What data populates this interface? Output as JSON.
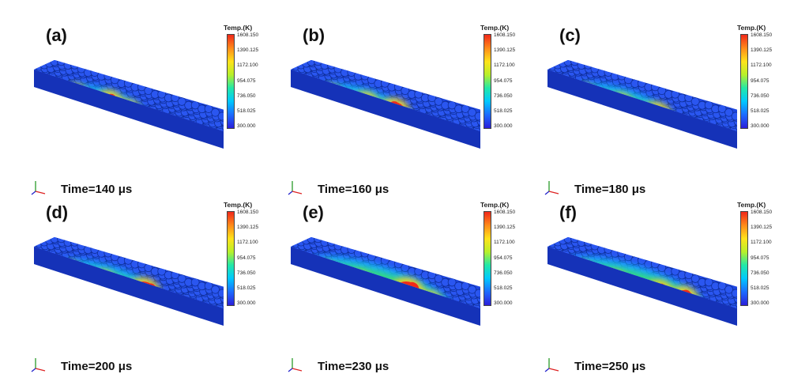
{
  "colors": {
    "scale": [
      "#2b1fd9",
      "#1c6bff",
      "#00c8ff",
      "#22e8a8",
      "#b8f02a",
      "#ffe21a",
      "#ff8a1a",
      "#f0281a"
    ],
    "block_top": "#1e46e0",
    "block_front": "#1532b8",
    "block_side": "#0e2490",
    "hot": "#f22a18",
    "warm": "#ffd21a",
    "mid": "#39e06a",
    "cool": "#18c0ff"
  },
  "icons": {
    "axes": "xyz-axes-icon"
  },
  "panels": [
    {
      "label": "(a)",
      "time": "Time=140 μs",
      "legend_title": "Temp.(K)",
      "ticks": [
        "1608.150",
        "1390.125",
        "1172.100",
        "954.075",
        "736.050",
        "518.025",
        "300.000"
      ]
    },
    {
      "label": "(b)",
      "time": "Time=160 μs",
      "legend_title": "Temp.(K)",
      "ticks": [
        "1608.150",
        "1390.125",
        "1172.100",
        "954.075",
        "736.050",
        "518.025",
        "300.000"
      ]
    },
    {
      "label": "(c)",
      "time": "Time=180 μs",
      "legend_title": "Temp.(K)",
      "ticks": [
        "1608.150",
        "1390.125",
        "1172.100",
        "954.075",
        "736.050",
        "518.025",
        "300.000"
      ]
    },
    {
      "label": "(d)",
      "time": "Time=200 μs",
      "legend_title": "Temp.(K)",
      "ticks": [
        "1608.150",
        "1390.125",
        "1172.100",
        "954.075",
        "736.050",
        "518.025",
        "300.000"
      ]
    },
    {
      "label": "(e)",
      "time": "Time=230 μs",
      "legend_title": "Temp.(K)",
      "ticks": [
        "1608.150",
        "1390.125",
        "1172.100",
        "954.075",
        "736.050",
        "518.025",
        "300.000"
      ]
    },
    {
      "label": "(f)",
      "time": "Time=250 μs",
      "legend_title": "Temp.(K)",
      "ticks": [
        "1608.150",
        "1390.125",
        "1172.100",
        "954.075",
        "736.050",
        "518.025",
        "300.000"
      ]
    }
  ]
}
